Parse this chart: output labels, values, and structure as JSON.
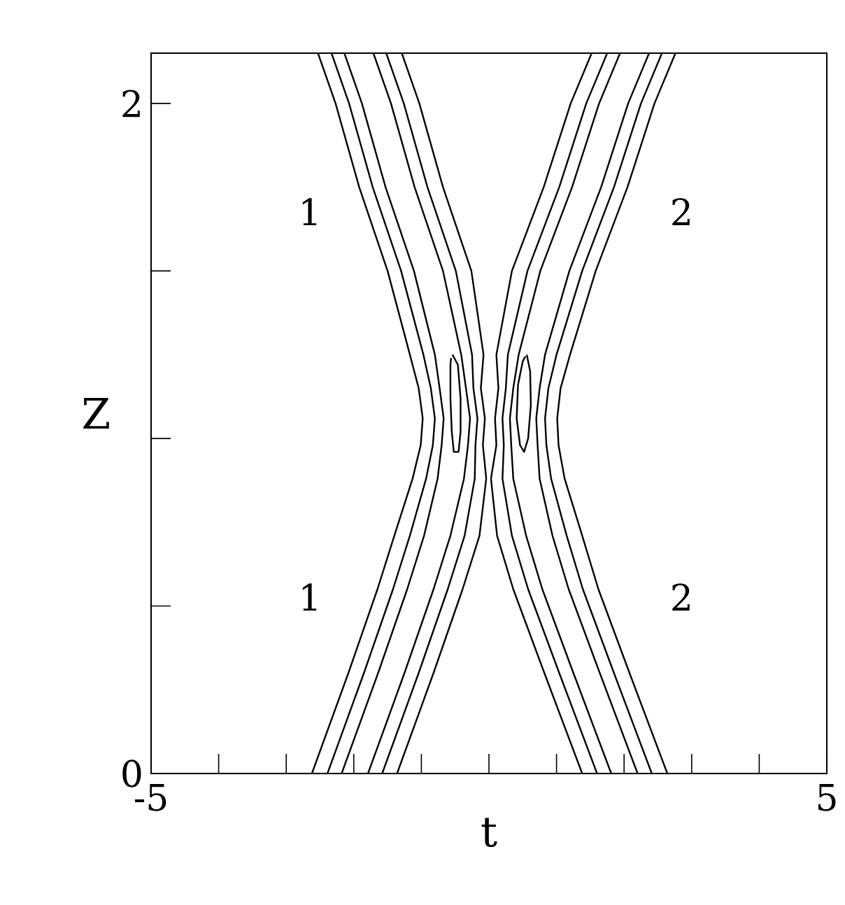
{
  "chart_data": {
    "type": "line",
    "xlabel": "t",
    "ylabel": "Z",
    "xlim": [
      -5,
      5
    ],
    "ylim": [
      0,
      2.15
    ],
    "xticks": [
      -5,
      {
        "value": -4,
        "label": null
      },
      {
        "value": -3,
        "label": null
      },
      {
        "value": -2,
        "label": null
      },
      {
        "value": -1,
        "label": null
      },
      {
        "value": 0,
        "label": null
      },
      {
        "value": 1,
        "label": null
      },
      {
        "value": 2,
        "label": null
      },
      {
        "value": 3,
        "label": null
      },
      {
        "value": 4,
        "label": null
      },
      5
    ],
    "yticks": [
      0,
      {
        "value": 0.5,
        "label": null
      },
      {
        "value": 1,
        "label": null
      },
      {
        "value": 1.5,
        "label": null
      },
      2
    ],
    "series": [
      {
        "color": "#000000",
        "x": [
          -2.62,
          -2.08,
          -1.65,
          -1.4,
          -1.13,
          -1.01,
          -0.98,
          -1.04,
          -1.17,
          -1.5,
          -1.92,
          -2.27,
          -2.53
        ],
        "values": [
          0,
          0.3,
          0.55,
          0.71,
          0.88,
          0.98,
          1.06,
          1.15,
          1.25,
          1.5,
          1.75,
          2.0,
          2.15
        ]
      },
      {
        "color": "#000000",
        "x": [
          -2.39,
          -1.85,
          -1.42,
          -1.17,
          -0.93,
          -0.83,
          -0.8,
          -0.86,
          -0.97,
          -1.3,
          -1.72,
          -2.07,
          -2.33
        ],
        "values": [
          0,
          0.3,
          0.55,
          0.71,
          0.88,
          0.98,
          1.06,
          1.15,
          1.25,
          1.5,
          1.75,
          2.0,
          2.15
        ]
      },
      {
        "color": "#000000",
        "x": [
          -2.18,
          -1.64,
          -1.21,
          -0.96,
          -0.76,
          -0.7,
          -0.67,
          -0.73,
          -0.8,
          -1.11,
          -1.53,
          -1.88,
          -2.14
        ],
        "values": [
          0,
          0.3,
          0.55,
          0.71,
          0.88,
          0.98,
          1.06,
          1.15,
          1.25,
          1.5,
          1.75,
          2.0,
          2.15
        ]
      },
      {
        "color": "#000000",
        "x": [
          -1.79,
          -1.25,
          -0.82,
          -0.57,
          -0.37,
          -0.31,
          -0.28,
          -0.34,
          -0.41,
          -0.68,
          -1.1,
          -1.45,
          -1.71
        ],
        "values": [
          0,
          0.3,
          0.55,
          0.71,
          0.88,
          0.98,
          1.06,
          1.15,
          1.25,
          1.5,
          1.75,
          2.0,
          2.15
        ]
      },
      {
        "color": "#000000",
        "x": [
          -1.58,
          -1.04,
          -0.61,
          -0.36,
          -0.21,
          -0.2,
          -0.17,
          -0.23,
          -0.25,
          -0.49,
          -0.91,
          -1.26,
          -1.52
        ],
        "values": [
          0,
          0.3,
          0.55,
          0.71,
          0.88,
          0.98,
          1.06,
          1.15,
          1.25,
          1.5,
          1.75,
          2.0,
          2.15
        ]
      },
      {
        "color": "#000000",
        "x": [
          -1.36,
          -0.82,
          -0.39,
          -0.14,
          -0.04,
          -0.09,
          -0.06,
          -0.12,
          -0.08,
          -0.26,
          -0.68,
          -1.03,
          -1.29
        ],
        "values": [
          0,
          0.3,
          0.55,
          0.71,
          0.88,
          0.98,
          1.06,
          1.15,
          1.25,
          1.5,
          1.75,
          2.0,
          2.15
        ]
      },
      {
        "color": "#000000",
        "x": [
          2.64,
          2.08,
          1.62,
          1.38,
          1.12,
          1.03,
          1.01,
          1.06,
          1.2,
          1.58,
          2.05,
          2.45,
          2.76
        ],
        "values": [
          0,
          0.3,
          0.55,
          0.71,
          0.88,
          0.98,
          1.06,
          1.15,
          1.25,
          1.5,
          1.75,
          2.0,
          2.15
        ]
      },
      {
        "color": "#000000",
        "x": [
          2.41,
          1.85,
          1.39,
          1.15,
          0.92,
          0.85,
          0.83,
          0.88,
          1.0,
          1.38,
          1.85,
          2.25,
          2.56
        ],
        "values": [
          0,
          0.3,
          0.55,
          0.71,
          0.88,
          0.98,
          1.06,
          1.15,
          1.25,
          1.5,
          1.75,
          2.0,
          2.15
        ]
      },
      {
        "color": "#000000",
        "x": [
          2.2,
          1.64,
          1.18,
          0.94,
          0.75,
          0.72,
          0.7,
          0.75,
          0.83,
          1.19,
          1.66,
          2.06,
          2.37
        ],
        "values": [
          0,
          0.3,
          0.55,
          0.71,
          0.88,
          0.98,
          1.06,
          1.15,
          1.25,
          1.5,
          1.75,
          2.0,
          2.15
        ]
      },
      {
        "color": "#000000",
        "x": [
          1.81,
          1.25,
          0.79,
          0.55,
          0.36,
          0.33,
          0.31,
          0.36,
          0.44,
          0.76,
          1.23,
          1.63,
          1.94
        ],
        "values": [
          0,
          0.3,
          0.55,
          0.71,
          0.88,
          0.98,
          1.06,
          1.15,
          1.25,
          1.5,
          1.75,
          2.0,
          2.15
        ]
      },
      {
        "color": "#000000",
        "x": [
          1.6,
          1.04,
          0.58,
          0.34,
          0.2,
          0.22,
          0.2,
          0.25,
          0.28,
          0.57,
          1.04,
          1.44,
          1.75
        ],
        "values": [
          0,
          0.3,
          0.55,
          0.71,
          0.88,
          0.98,
          1.06,
          1.15,
          1.25,
          1.5,
          1.75,
          2.0,
          2.15
        ]
      },
      {
        "color": "#000000",
        "x": [
          1.38,
          0.82,
          0.36,
          0.12,
          0.03,
          0.11,
          0.09,
          0.14,
          0.11,
          0.34,
          0.81,
          1.21,
          1.52
        ],
        "values": [
          0,
          0.3,
          0.55,
          0.71,
          0.88,
          0.98,
          1.06,
          1.15,
          1.25,
          1.5,
          1.75,
          2.0,
          2.15
        ]
      },
      {
        "color": "#000000",
        "x": [
          -0.54,
          -0.46,
          -0.42,
          -0.42,
          -0.45,
          -0.52,
          -0.55,
          -0.57,
          -0.57,
          -0.56
        ],
        "values": [
          1.25,
          1.22,
          1.12,
          1.02,
          0.96,
          0.96,
          1.02,
          1.12,
          1.22,
          1.24
        ]
      },
      {
        "color": "#000000",
        "x": [
          0.56,
          0.61,
          0.62,
          0.58,
          0.52,
          0.46,
          0.41,
          0.43,
          0.5,
          0.54
        ],
        "values": [
          1.25,
          1.2,
          1.1,
          1.0,
          0.96,
          0.98,
          1.06,
          1.16,
          1.23,
          1.245
        ]
      }
    ],
    "annotations": [
      "1",
      "2",
      "1",
      "2"
    ]
  }
}
